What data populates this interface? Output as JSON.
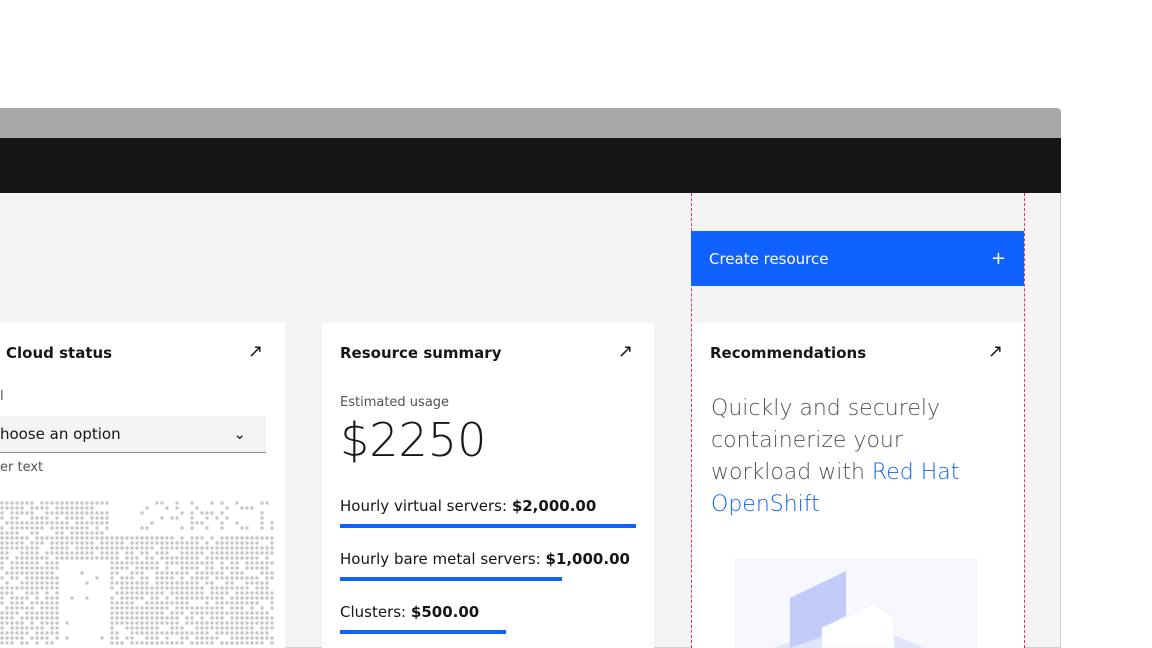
{
  "header": {
    "create_button": {
      "label": "Create resource",
      "icon": "plus-icon"
    }
  },
  "cloud_status": {
    "title": "Cloud status",
    "field_label": "l",
    "dropdown_value": "hoose an option",
    "helper_text": "er text",
    "icon": "arrow-up-right-icon"
  },
  "resource_summary": {
    "title": "Resource summary",
    "estimated_label": "Estimated usage",
    "estimated_value": "$2250",
    "items": [
      {
        "label": "Hourly virtual servers:",
        "value": "$2,000.00",
        "fill_percent": 100
      },
      {
        "label": "Hourly bare metal servers:",
        "value": "$1,000.00",
        "fill_percent": 75
      },
      {
        "label": "Clusters:",
        "value": "$500.00",
        "fill_percent": 56
      }
    ]
  },
  "recommendations": {
    "title": "Recommendations",
    "text": "Quickly and securely containerize your workload with ",
    "link": "Red Hat OpenShift"
  },
  "colors": {
    "accent": "#0f62fe",
    "header": "#161616",
    "guide": "#e0306a"
  }
}
